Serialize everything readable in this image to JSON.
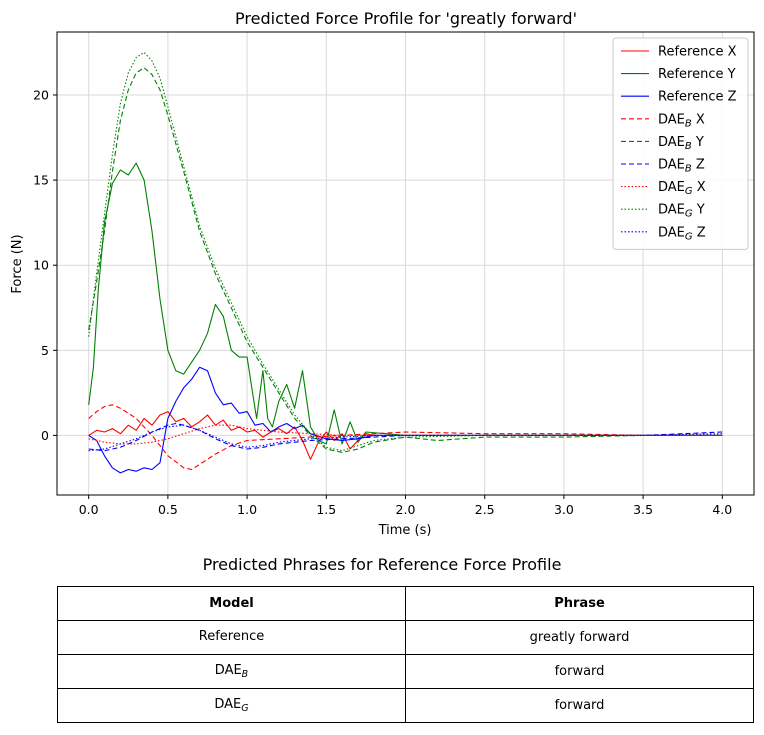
{
  "chart_data": {
    "type": "line",
    "title": "Predicted Force Profile for 'greatly forward'",
    "xlabel": "Time (s)",
    "ylabel": "Force (N)",
    "xlim": [
      -0.2,
      4.2
    ],
    "ylim": [
      -3.5,
      23.7
    ],
    "xticks": [
      0.0,
      0.5,
      1.0,
      1.5,
      2.0,
      2.5,
      3.0,
      3.5,
      4.0
    ],
    "xtick_labels": [
      "0.0",
      "0.5",
      "1.0",
      "1.5",
      "2.0",
      "2.5",
      "3.0",
      "3.5",
      "4.0"
    ],
    "yticks": [
      0,
      5,
      10,
      15,
      20
    ],
    "ytick_labels": [
      "0",
      "5",
      "10",
      "15",
      "20"
    ],
    "grid": true,
    "legend_position": "top-right",
    "series": [
      {
        "name": "Reference X",
        "label_main": "Reference X",
        "label_sub": "",
        "label_tail": "",
        "color": "#ff0000",
        "style": "solid",
        "x": [
          0,
          0.05,
          0.1,
          0.15,
          0.2,
          0.25,
          0.3,
          0.35,
          0.4,
          0.45,
          0.5,
          0.55,
          0.6,
          0.65,
          0.7,
          0.75,
          0.8,
          0.85,
          0.9,
          0.95,
          1.0,
          1.05,
          1.1,
          1.15,
          1.2,
          1.25,
          1.3,
          1.35,
          1.4,
          1.45,
          1.5,
          1.55,
          1.6,
          1.65,
          1.7,
          1.75,
          1.8,
          2.0,
          2.5,
          3.0,
          3.5,
          4.0
        ],
        "y": [
          0,
          0.3,
          0.2,
          0.4,
          0.1,
          0.6,
          0.3,
          1.0,
          0.6,
          1.2,
          1.4,
          0.8,
          1.0,
          0.5,
          0.8,
          1.2,
          0.6,
          0.9,
          0.3,
          0.5,
          0.2,
          0.3,
          -0.1,
          0.2,
          0.4,
          0.1,
          0.5,
          -0.3,
          -1.4,
          -0.4,
          0.2,
          -0.3,
          0.1,
          -0.8,
          -0.3,
          0.1,
          0.0,
          0.0,
          0.0,
          0.0,
          0.0,
          0.0
        ]
      },
      {
        "name": "Reference Y",
        "label_main": "Reference Y",
        "label_sub": "",
        "label_tail": "",
        "color": "#008000",
        "style": "solid",
        "x": [
          0,
          0.03,
          0.06,
          0.1,
          0.15,
          0.2,
          0.25,
          0.3,
          0.35,
          0.4,
          0.45,
          0.5,
          0.55,
          0.6,
          0.65,
          0.7,
          0.75,
          0.8,
          0.85,
          0.9,
          0.95,
          1.0,
          1.03,
          1.06,
          1.1,
          1.13,
          1.16,
          1.2,
          1.25,
          1.3,
          1.35,
          1.4,
          1.45,
          1.5,
          1.55,
          1.6,
          1.65,
          1.7,
          1.75,
          2.0,
          2.5,
          3.0,
          3.5,
          4.0
        ],
        "y": [
          1.8,
          4.0,
          8.5,
          12.5,
          14.8,
          15.6,
          15.3,
          16.0,
          15.0,
          12.0,
          8.0,
          5.0,
          3.8,
          3.6,
          4.3,
          5.0,
          6.0,
          7.7,
          7.0,
          5.0,
          4.6,
          4.6,
          2.8,
          1.0,
          3.8,
          1.0,
          0.5,
          2.0,
          3.0,
          1.6,
          3.8,
          0.5,
          -0.3,
          -0.5,
          1.5,
          -0.5,
          0.8,
          -0.4,
          0.2,
          0.0,
          0.0,
          0.0,
          0.0,
          0.0
        ]
      },
      {
        "name": "Reference Z",
        "label_main": "Reference Z",
        "label_sub": "",
        "label_tail": "",
        "color": "#0000ff",
        "style": "solid",
        "x": [
          0,
          0.05,
          0.1,
          0.15,
          0.2,
          0.25,
          0.3,
          0.35,
          0.4,
          0.45,
          0.5,
          0.55,
          0.6,
          0.65,
          0.7,
          0.75,
          0.8,
          0.85,
          0.9,
          0.95,
          1.0,
          1.05,
          1.1,
          1.15,
          1.2,
          1.25,
          1.3,
          1.35,
          1.4,
          1.5,
          1.6,
          1.7,
          1.8,
          2.0,
          2.5,
          3.0,
          3.5,
          4.0
        ],
        "y": [
          0,
          -0.3,
          -1.2,
          -1.9,
          -2.2,
          -2.0,
          -2.1,
          -1.9,
          -2.0,
          -1.6,
          1.0,
          2.0,
          2.8,
          3.3,
          4.0,
          3.8,
          2.5,
          1.8,
          1.9,
          1.3,
          1.4,
          0.6,
          0.7,
          0.2,
          0.5,
          0.7,
          0.4,
          0.6,
          0.1,
          -0.2,
          -0.3,
          -0.2,
          0.0,
          0.0,
          0.0,
          0.0,
          0.0,
          0.0
        ]
      },
      {
        "name": "DAE_B X",
        "label_main": "DAE",
        "label_sub": "B",
        "label_tail": " X",
        "color": "#ff0000",
        "style": "dashed",
        "x": [
          0,
          0.05,
          0.1,
          0.15,
          0.2,
          0.3,
          0.4,
          0.5,
          0.6,
          0.65,
          0.7,
          0.8,
          0.9,
          1.0,
          1.2,
          1.4,
          1.6,
          1.8,
          2.0,
          2.5,
          3.0,
          3.5,
          4.0
        ],
        "y": [
          1.0,
          1.4,
          1.7,
          1.8,
          1.6,
          1.0,
          0.0,
          -1.2,
          -1.9,
          -2.0,
          -1.7,
          -1.1,
          -0.6,
          -0.3,
          -0.2,
          -0.1,
          0.0,
          0.1,
          0.2,
          0.1,
          0.1,
          0.0,
          0.0
        ]
      },
      {
        "name": "DAE_B Y",
        "label_main": "DAE",
        "label_sub": "B",
        "label_tail": " Y",
        "color": "#008000",
        "style": "dashed",
        "x": [
          0,
          0.05,
          0.1,
          0.15,
          0.2,
          0.25,
          0.3,
          0.35,
          0.4,
          0.45,
          0.5,
          0.6,
          0.7,
          0.8,
          0.9,
          1.0,
          1.1,
          1.2,
          1.3,
          1.4,
          1.5,
          1.6,
          1.7,
          1.8,
          2.0,
          2.2,
          2.5,
          3.0,
          3.5,
          4.0
        ],
        "y": [
          6.2,
          9.0,
          12.0,
          15.5,
          18.5,
          20.3,
          21.3,
          21.6,
          21.2,
          20.3,
          18.8,
          15.5,
          12.0,
          9.5,
          7.5,
          5.5,
          4.0,
          2.5,
          1.0,
          0.0,
          -0.8,
          -1.0,
          -0.8,
          -0.4,
          -0.1,
          -0.3,
          -0.1,
          -0.1,
          0.0,
          0.0
        ]
      },
      {
        "name": "DAE_B Z",
        "label_main": "DAE",
        "label_sub": "B",
        "label_tail": " Z",
        "color": "#0000ff",
        "style": "dashed",
        "x": [
          0,
          0.1,
          0.2,
          0.3,
          0.4,
          0.5,
          0.55,
          0.6,
          0.7,
          0.8,
          0.9,
          1.0,
          1.1,
          1.2,
          1.4,
          1.6,
          1.8,
          2.0,
          2.5,
          3.0,
          3.5,
          4.0
        ],
        "y": [
          -0.8,
          -0.9,
          -0.7,
          -0.3,
          0.2,
          0.6,
          0.7,
          0.6,
          0.3,
          -0.2,
          -0.6,
          -0.8,
          -0.7,
          -0.5,
          -0.3,
          -0.2,
          -0.1,
          0.0,
          0.0,
          0.0,
          0.0,
          0.2
        ]
      },
      {
        "name": "DAE_G X",
        "label_main": "DAE",
        "label_sub": "G",
        "label_tail": " X",
        "color": "#ff0000",
        "style": "dotted",
        "x": [
          0,
          0.1,
          0.2,
          0.3,
          0.4,
          0.5,
          0.6,
          0.7,
          0.8,
          0.9,
          1.0,
          1.2,
          1.4,
          1.6,
          1.8,
          2.0,
          2.5,
          3.0,
          3.5,
          4.0
        ],
        "y": [
          -0.2,
          -0.4,
          -0.5,
          -0.5,
          -0.4,
          -0.2,
          0.1,
          0.4,
          0.6,
          0.6,
          0.4,
          0.2,
          0.1,
          0.0,
          0.0,
          0.0,
          0.0,
          0.0,
          0.0,
          0.0
        ]
      },
      {
        "name": "DAE_G Y",
        "label_main": "DAE",
        "label_sub": "G",
        "label_tail": " Y",
        "color": "#008000",
        "style": "dotted",
        "x": [
          0,
          0.05,
          0.1,
          0.15,
          0.2,
          0.25,
          0.3,
          0.35,
          0.4,
          0.45,
          0.5,
          0.6,
          0.7,
          0.8,
          0.9,
          1.0,
          1.1,
          1.2,
          1.3,
          1.4,
          1.5,
          1.6,
          1.7,
          1.8,
          2.0,
          2.5,
          3.0,
          3.5,
          4.0
        ],
        "y": [
          5.8,
          9.5,
          13.0,
          16.5,
          19.5,
          21.3,
          22.2,
          22.5,
          22.0,
          21.0,
          19.3,
          15.8,
          12.3,
          9.8,
          7.8,
          5.8,
          4.2,
          2.7,
          1.2,
          0.1,
          -0.7,
          -0.9,
          -0.6,
          -0.3,
          -0.1,
          0.0,
          0.0,
          0.0,
          0.0
        ]
      },
      {
        "name": "DAE_G Z",
        "label_main": "DAE",
        "label_sub": "G",
        "label_tail": " Z",
        "color": "#0000ff",
        "style": "dotted",
        "x": [
          0,
          0.1,
          0.2,
          0.3,
          0.4,
          0.5,
          0.6,
          0.7,
          0.8,
          0.9,
          1.0,
          1.1,
          1.2,
          1.4,
          1.6,
          1.8,
          2.0,
          2.5,
          3.0,
          3.5,
          4.0
        ],
        "y": [
          -0.9,
          -0.8,
          -0.5,
          -0.2,
          0.2,
          0.5,
          0.6,
          0.3,
          -0.1,
          -0.5,
          -0.7,
          -0.6,
          -0.4,
          -0.2,
          -0.1,
          0.0,
          0.0,
          0.0,
          0.0,
          0.0,
          0.1
        ]
      }
    ]
  },
  "table": {
    "title": "Predicted Phrases for Reference Force Profile",
    "headers": [
      "Model",
      "Phrase"
    ],
    "rows": [
      {
        "model_main": "Reference",
        "model_sub": "",
        "phrase": "greatly forward"
      },
      {
        "model_main": "DAE",
        "model_sub": "B",
        "phrase": "forward"
      },
      {
        "model_main": "DAE",
        "model_sub": "G",
        "phrase": "forward"
      }
    ]
  }
}
